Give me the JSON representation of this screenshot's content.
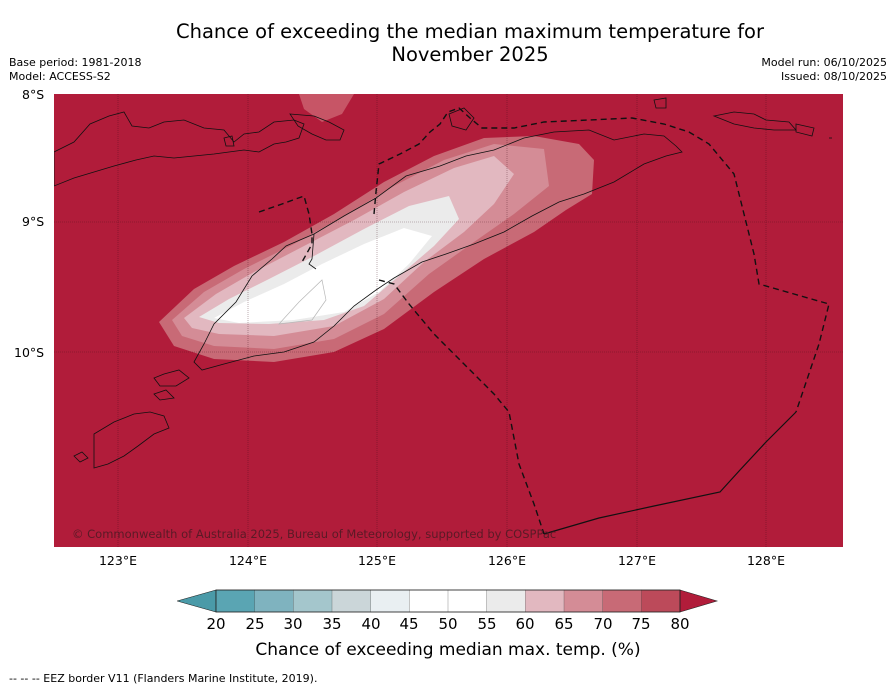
{
  "title_line1": "Chance of exceeding the median maximum temperature for",
  "title_line2": "November 2025",
  "base_period": "Base period: 1981-2018",
  "model": "Model: ACCESS-S2",
  "model_run": "Model run: 06/10/2025",
  "issued": "Issued: 08/10/2025",
  "lat_labels": [
    "8°S",
    "9°S",
    "10°S"
  ],
  "lon_labels": [
    "123°E",
    "124°E",
    "125°E",
    "126°E",
    "127°E",
    "128°E"
  ],
  "copyright": "© Commonwealth of Australia 2025, Bureau of Meteorology, supported by COSPPac",
  "colorbar": {
    "ticks": [
      "20",
      "25",
      "30",
      "35",
      "40",
      "45",
      "50",
      "55",
      "60",
      "65",
      "70",
      "75",
      "80"
    ],
    "colors": [
      "#5aa5b3",
      "#7fb3bf",
      "#a4c6cc",
      "#cbd6d9",
      "#e9eff2",
      "#ffffff",
      "#ffffff",
      "#ebebeb",
      "#e2b8c0",
      "#d48c96",
      "#c86a76",
      "#bc4a5a"
    ],
    "under_color": "#4a9aa8",
    "over_color": "#b11c3a",
    "label": "Chance of exceeding median max. temp. (%)"
  },
  "footnote": "--  --  -- EEZ border V11 (Flanders Marine Institute, 2019).",
  "map": {
    "background_color": "#b11c3a",
    "dominant_category": "> 80%",
    "lat_range": [
      "8°S",
      "11.5°S"
    ],
    "lon_range": [
      "122.5°E",
      "128.6°E"
    ]
  }
}
